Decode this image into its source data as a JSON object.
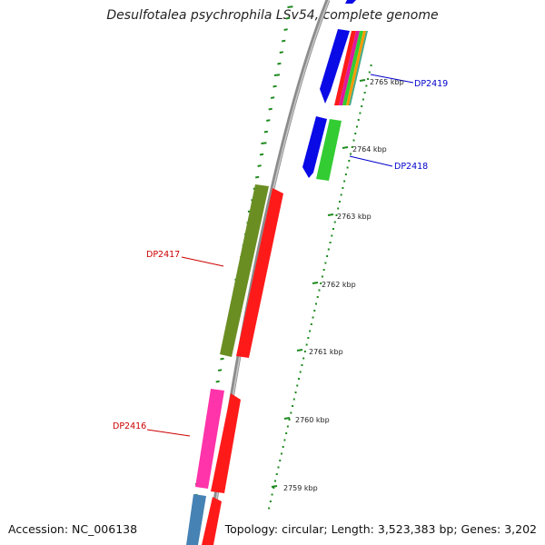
{
  "title": "Desulfotalea psychrophila LSv54, complete genome",
  "accession_label": "Accession: NC_006138",
  "topology_label": "Topology: circular; Length: 3,523,383 bp; Genes: 3,202",
  "colors": {
    "backbone": "#8c8c8c",
    "tick": "#1e8a1e",
    "forward_label": "#0000cc",
    "reverse_label": "#cc0000"
  },
  "kbp_labels": [
    "2765 kbp",
    "2764 kbp",
    "2763 kbp",
    "2762 kbp",
    "2761 kbp",
    "2760 kbp",
    "2759 kbp"
  ],
  "gene_labels": [
    {
      "text": "DP2419",
      "color": "#0000cc"
    },
    {
      "text": "DP2418",
      "color": "#0000cc"
    },
    {
      "text": "DP2417",
      "color": "#cc0000"
    },
    {
      "text": "DP2416",
      "color": "#cc0000"
    }
  ]
}
